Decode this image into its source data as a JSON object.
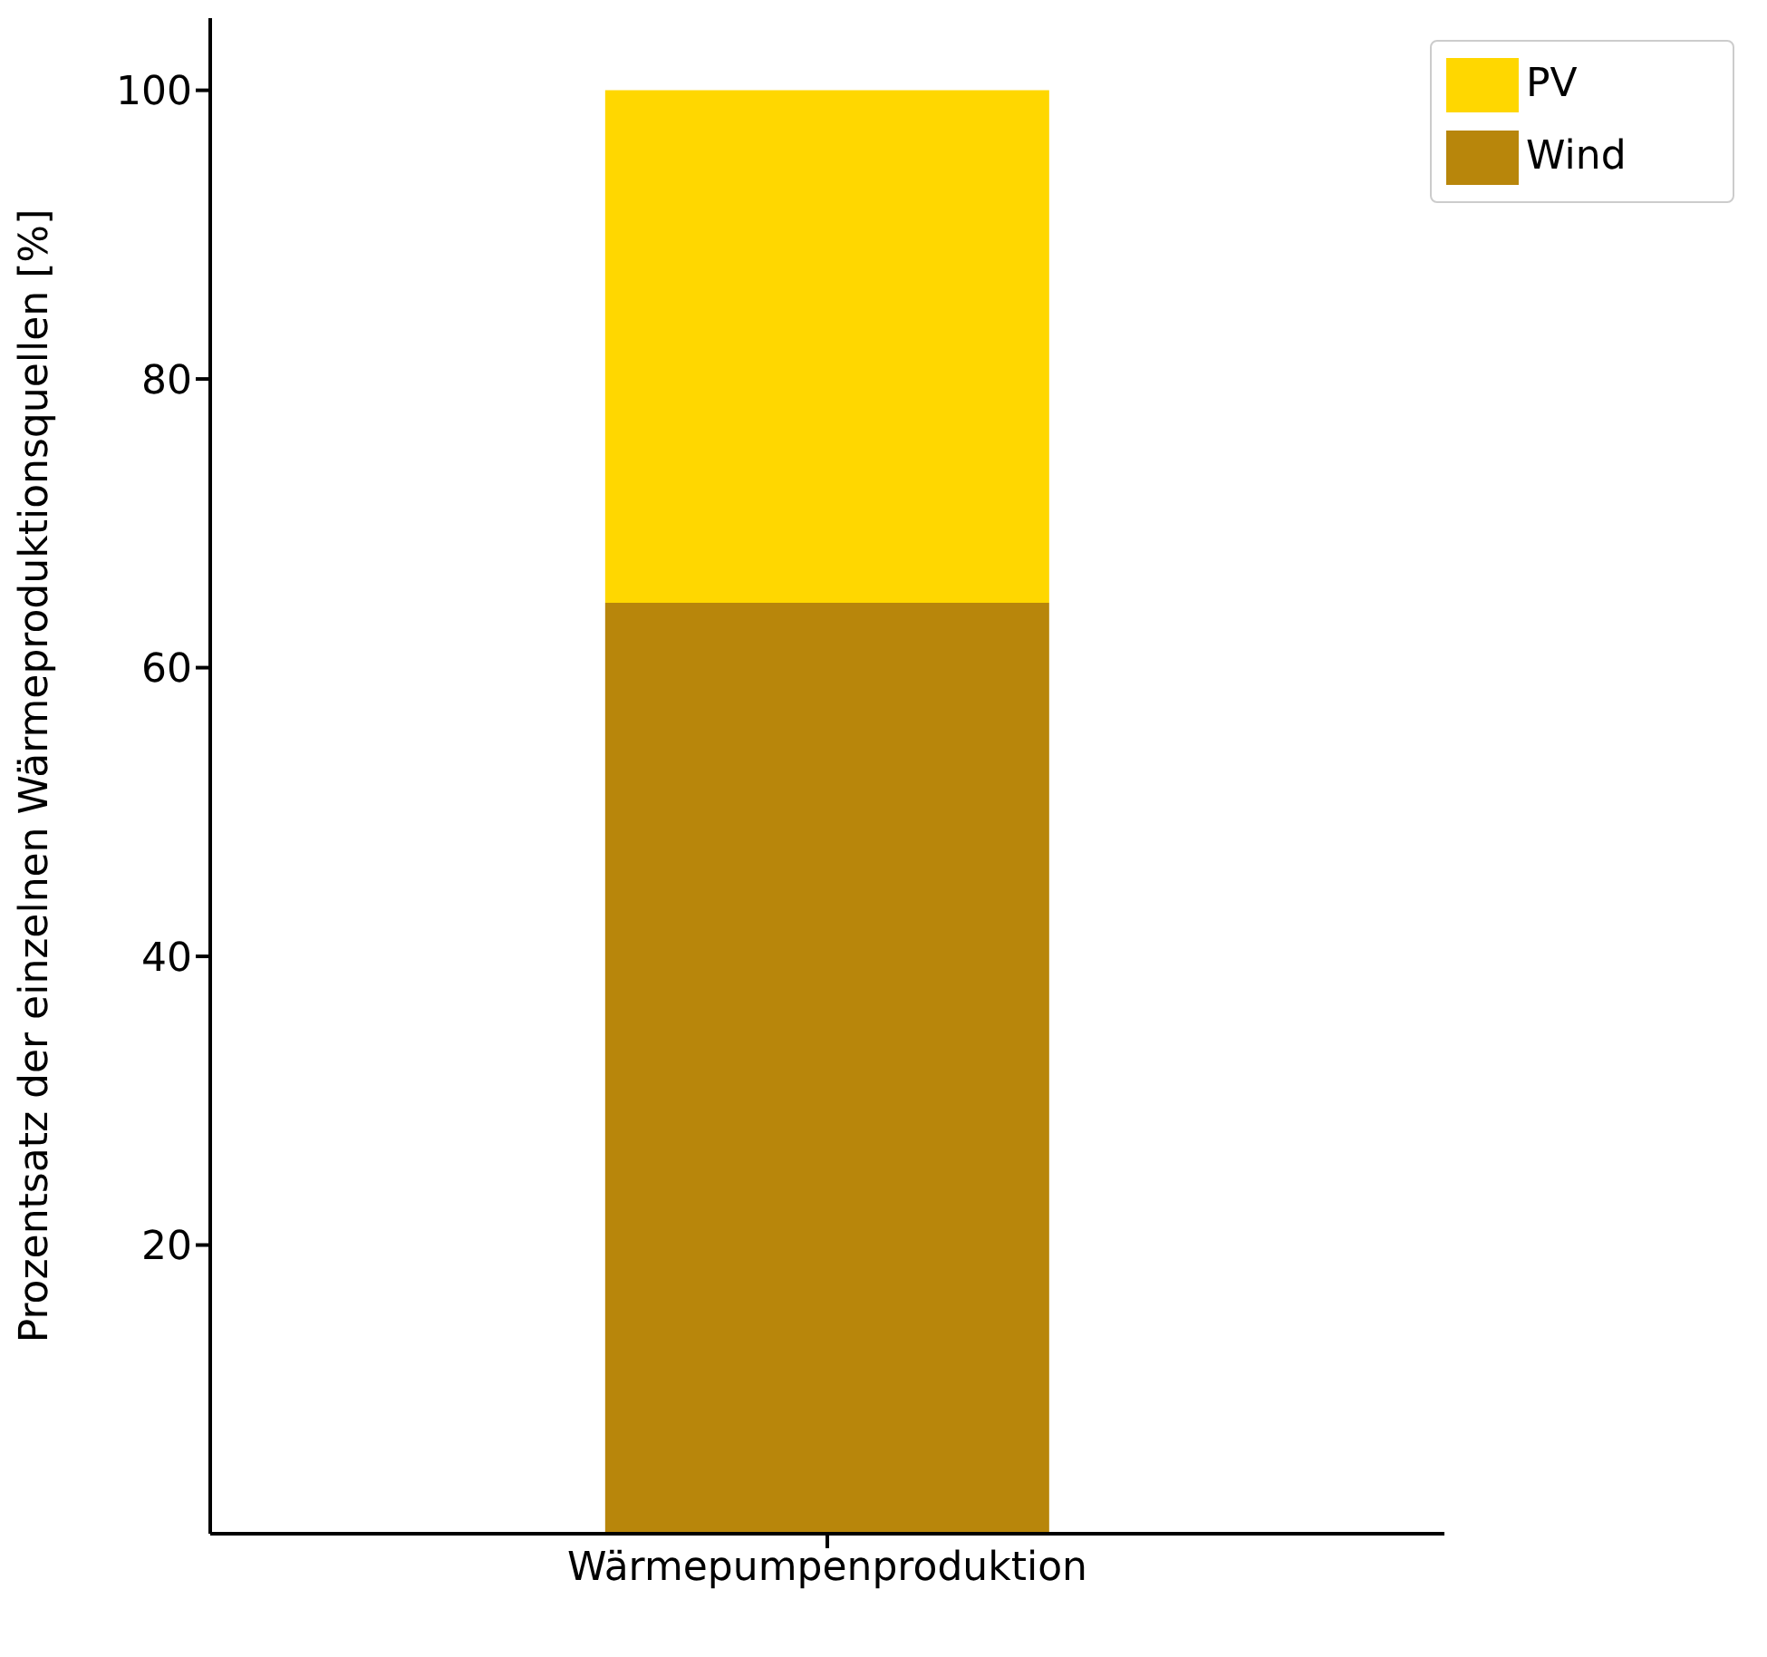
{
  "chart_data": {
    "type": "bar",
    "stacked": true,
    "categories": [
      "Wärmepumpenproduktion"
    ],
    "series": [
      {
        "name": "Wind",
        "color": "#b8860b",
        "values": [
          64.5
        ]
      },
      {
        "name": "PV",
        "color": "#ffd700",
        "values": [
          35.5
        ]
      }
    ],
    "ylabel": "Prozentsatz der einzelnen Wärmeproduktionsquellen [%]",
    "ylim": [
      0,
      105
    ],
    "yticks": [
      20,
      40,
      60,
      80,
      100
    ],
    "legend": "top right",
    "grid": false
  }
}
